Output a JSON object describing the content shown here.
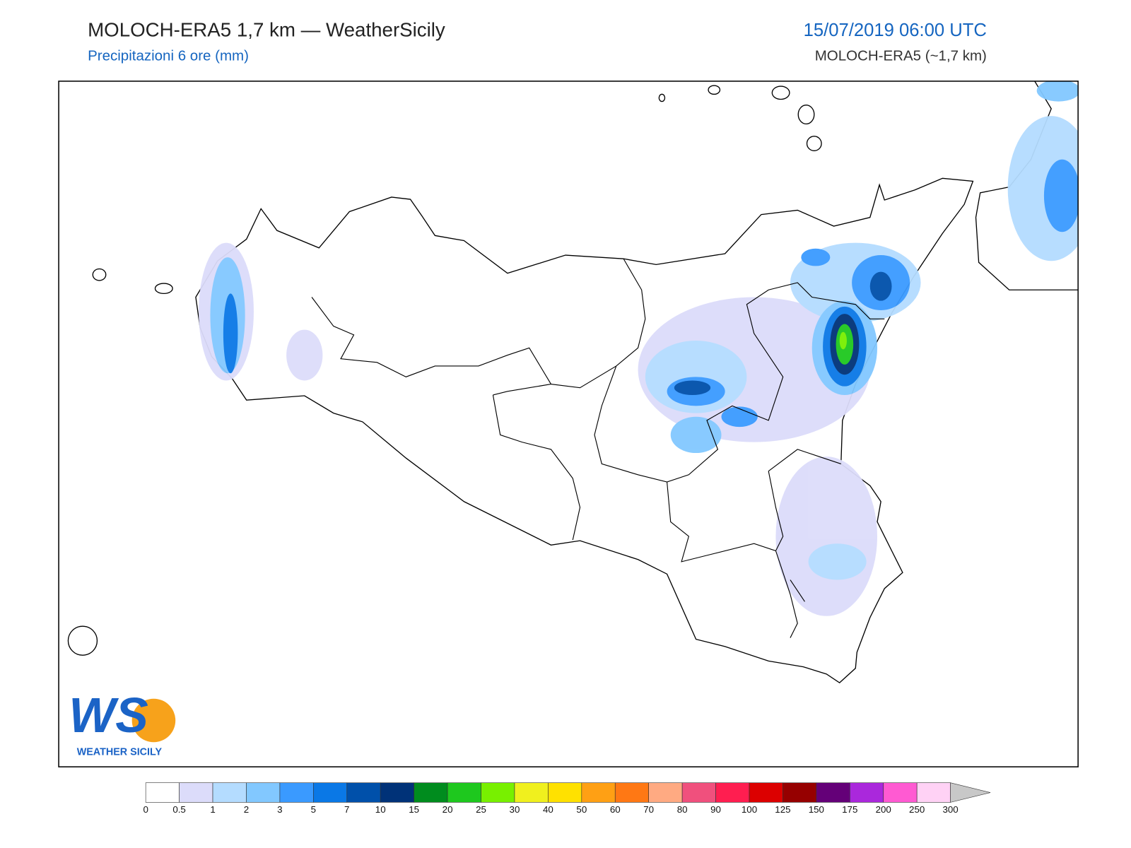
{
  "header": {
    "title": "MOLOCH-ERA5 1,7 km — WeatherSicily",
    "subtitle": "Precipitazioni 6 ore (mm)",
    "date": "15/07/2019 06:00 UTC",
    "model": "MOLOCH-ERA5 (~1,7 km)"
  },
  "logo": {
    "mark": "WS",
    "text": "WEATHER SICILY"
  },
  "colorbar": {
    "levels": [
      0,
      0.5,
      1,
      2,
      3,
      5,
      7,
      10,
      15,
      20,
      25,
      30,
      40,
      50,
      60,
      70,
      80,
      90,
      100,
      125,
      150,
      175,
      200,
      250,
      300
    ],
    "colors": [
      "#ffffff",
      "#dcdcfa",
      "#b4dcff",
      "#82c8ff",
      "#3a9aff",
      "#0a78e6",
      "#0050aa",
      "#003278",
      "#008c1e",
      "#1ec81e",
      "#78f000",
      "#f0f01e",
      "#ffe100",
      "#ffa014",
      "#ff7814",
      "#ffaa82",
      "#f0507d",
      "#ff1e50",
      "#dc0000",
      "#960000",
      "#640078",
      "#aa28dc",
      "#ff5ad2",
      "#ffd2f5"
    ],
    "extend_color": "#c8c8c8"
  }
}
